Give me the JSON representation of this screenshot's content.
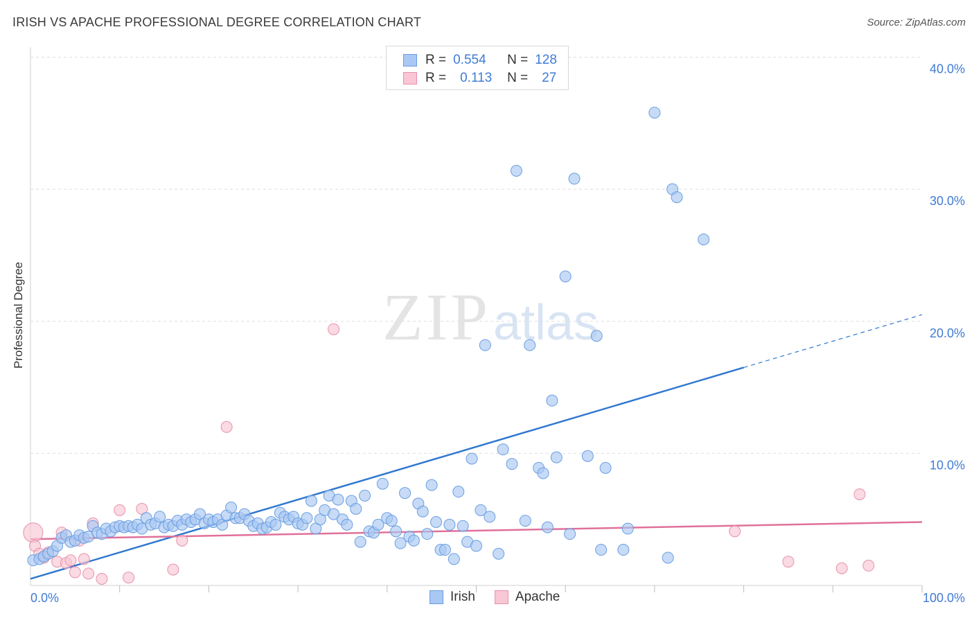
{
  "title": "IRISH VS APACHE PROFESSIONAL DEGREE CORRELATION CHART",
  "source": "Source: ZipAtlas.com",
  "watermark": {
    "zip": "ZIP",
    "atlas": "atlas"
  },
  "legend": {
    "rows": [
      {
        "r_label": "R =",
        "r_value": "0.554",
        "n_label": "N =",
        "n_value": "128",
        "color": "#a9c8f3",
        "border": "#6a9ee0"
      },
      {
        "r_label": "R =",
        "r_value": "0.113",
        "n_label": "N =",
        "n_value": "27",
        "color": "#f8c6d4",
        "border": "#e891aa"
      }
    ]
  },
  "bottom_legend": [
    {
      "label": "Irish",
      "color": "#a9c8f3",
      "border": "#6a9ee0"
    },
    {
      "label": "Apache",
      "color": "#f8c6d4",
      "border": "#e891aa"
    }
  ],
  "chart_data": {
    "type": "scatter",
    "title": "IRISH VS APACHE PROFESSIONAL DEGREE CORRELATION CHART",
    "xlabel": "",
    "ylabel": "Professional Degree",
    "xlim": [
      0,
      100
    ],
    "ylim": [
      0,
      40.5
    ],
    "x_tick_labels": [
      "0.0%",
      "100.0%"
    ],
    "y_ticks": [
      10,
      20,
      30,
      40
    ],
    "y_tick_labels": [
      "10.0%",
      "20.0%",
      "30.0%",
      "40.0%"
    ],
    "grid": true,
    "legend_position": "top-center",
    "series": [
      {
        "name": "Irish",
        "color": "#6a9ee0",
        "fill": "#a9c8f3",
        "points": [
          [
            0.3,
            1.9
          ],
          [
            1.0,
            2.0
          ],
          [
            1.5,
            2.2
          ],
          [
            2.0,
            2.4
          ],
          [
            2.5,
            2.6
          ],
          [
            3.0,
            3.0
          ],
          [
            3.5,
            3.6
          ],
          [
            4.0,
            3.8
          ],
          [
            4.5,
            3.3
          ],
          [
            5.0,
            3.4
          ],
          [
            5.5,
            3.8
          ],
          [
            6.0,
            3.6
          ],
          [
            6.5,
            3.7
          ],
          [
            7.0,
            4.5
          ],
          [
            7.5,
            4.0
          ],
          [
            8.0,
            3.9
          ],
          [
            8.5,
            4.3
          ],
          [
            9.0,
            4.1
          ],
          [
            9.5,
            4.4
          ],
          [
            10.0,
            4.5
          ],
          [
            10.5,
            4.4
          ],
          [
            11.0,
            4.5
          ],
          [
            11.5,
            4.4
          ],
          [
            12.0,
            4.6
          ],
          [
            12.5,
            4.3
          ],
          [
            13.0,
            5.1
          ],
          [
            13.5,
            4.6
          ],
          [
            14.0,
            4.7
          ],
          [
            14.5,
            5.2
          ],
          [
            15.0,
            4.4
          ],
          [
            15.5,
            4.6
          ],
          [
            16.0,
            4.5
          ],
          [
            16.5,
            4.9
          ],
          [
            17.0,
            4.6
          ],
          [
            17.5,
            5.0
          ],
          [
            18.0,
            4.8
          ],
          [
            18.5,
            5.0
          ],
          [
            19.0,
            5.4
          ],
          [
            19.5,
            4.7
          ],
          [
            20.0,
            5.0
          ],
          [
            20.5,
            4.8
          ],
          [
            21.0,
            5.0
          ],
          [
            21.5,
            4.6
          ],
          [
            22.0,
            5.3
          ],
          [
            22.5,
            5.9
          ],
          [
            23.0,
            5.1
          ],
          [
            23.5,
            5.1
          ],
          [
            24.0,
            5.4
          ],
          [
            24.5,
            4.9
          ],
          [
            25.0,
            4.5
          ],
          [
            25.5,
            4.7
          ],
          [
            26.0,
            4.3
          ],
          [
            26.5,
            4.4
          ],
          [
            27.0,
            4.8
          ],
          [
            27.5,
            4.6
          ],
          [
            28.0,
            5.5
          ],
          [
            28.5,
            5.2
          ],
          [
            29.0,
            5.0
          ],
          [
            29.5,
            5.2
          ],
          [
            30.0,
            4.7
          ],
          [
            30.5,
            4.6
          ],
          [
            31.0,
            5.1
          ],
          [
            31.5,
            6.4
          ],
          [
            32.0,
            4.3
          ],
          [
            32.5,
            5.0
          ],
          [
            33.0,
            5.7
          ],
          [
            33.5,
            6.8
          ],
          [
            34.0,
            5.4
          ],
          [
            34.5,
            6.5
          ],
          [
            35.0,
            5.0
          ],
          [
            35.5,
            4.6
          ],
          [
            36.0,
            6.4
          ],
          [
            36.5,
            5.8
          ],
          [
            37.0,
            3.3
          ],
          [
            37.5,
            6.8
          ],
          [
            38.0,
            4.1
          ],
          [
            38.5,
            4.0
          ],
          [
            39.0,
            4.6
          ],
          [
            39.5,
            7.7
          ],
          [
            40.0,
            5.1
          ],
          [
            40.5,
            4.9
          ],
          [
            41.0,
            4.1
          ],
          [
            41.5,
            3.2
          ],
          [
            42.0,
            7.0
          ],
          [
            42.5,
            3.7
          ],
          [
            43.0,
            3.4
          ],
          [
            43.5,
            6.2
          ],
          [
            44.0,
            5.6
          ],
          [
            44.5,
            3.9
          ],
          [
            45.0,
            7.6
          ],
          [
            45.5,
            4.8
          ],
          [
            46.0,
            2.7
          ],
          [
            46.5,
            2.7
          ],
          [
            47.0,
            4.6
          ],
          [
            47.5,
            2.0
          ],
          [
            48.0,
            7.1
          ],
          [
            48.5,
            4.5
          ],
          [
            49.0,
            3.3
          ],
          [
            49.5,
            9.6
          ],
          [
            50.0,
            3.0
          ],
          [
            50.5,
            5.7
          ],
          [
            51.0,
            18.2
          ],
          [
            51.5,
            5.2
          ],
          [
            52.5,
            2.4
          ],
          [
            53.0,
            10.3
          ],
          [
            54.0,
            9.2
          ],
          [
            54.5,
            31.4
          ],
          [
            55.5,
            4.9
          ],
          [
            56.0,
            18.2
          ],
          [
            57.0,
            8.9
          ],
          [
            57.5,
            8.5
          ],
          [
            58.0,
            4.4
          ],
          [
            58.5,
            14.0
          ],
          [
            59.0,
            9.7
          ],
          [
            60.0,
            23.4
          ],
          [
            60.5,
            3.9
          ],
          [
            61.0,
            30.8
          ],
          [
            64.0,
            2.7
          ],
          [
            62.5,
            9.8
          ],
          [
            63.5,
            18.9
          ],
          [
            64.5,
            8.9
          ],
          [
            66.5,
            2.7
          ],
          [
            67.0,
            4.3
          ],
          [
            70.0,
            35.8
          ],
          [
            71.5,
            2.1
          ],
          [
            72.0,
            30.0
          ],
          [
            72.5,
            29.4
          ],
          [
            75.5,
            26.2
          ]
        ]
      },
      {
        "name": "Apache",
        "color": "#e891aa",
        "fill": "#f8c6d4",
        "points": [
          [
            0.3,
            4.0
          ],
          [
            0.5,
            3.0
          ],
          [
            1.0,
            2.4
          ],
          [
            1.5,
            2.1
          ],
          [
            2.0,
            2.5
          ],
          [
            3.0,
            1.8
          ],
          [
            3.5,
            4.0
          ],
          [
            4.0,
            1.7
          ],
          [
            4.5,
            1.9
          ],
          [
            5.0,
            1.0
          ],
          [
            5.5,
            3.4
          ],
          [
            6.0,
            2.0
          ],
          [
            6.5,
            0.9
          ],
          [
            7.0,
            4.7
          ],
          [
            8.0,
            0.5
          ],
          [
            10.0,
            5.7
          ],
          [
            11.0,
            0.6
          ],
          [
            12.5,
            5.8
          ],
          [
            16.0,
            1.2
          ],
          [
            17.0,
            3.4
          ],
          [
            22.0,
            12.0
          ],
          [
            34.0,
            19.4
          ],
          [
            79.0,
            4.1
          ],
          [
            85.0,
            1.8
          ],
          [
            91.0,
            1.3
          ],
          [
            93.0,
            6.9
          ],
          [
            94.0,
            1.5
          ]
        ]
      }
    ],
    "trend_lines": [
      {
        "series": "Irish",
        "from": [
          0,
          0.5
        ],
        "to": [
          80,
          16.5
        ],
        "extended_to": [
          100,
          20.5
        ]
      },
      {
        "series": "Apache",
        "from": [
          0,
          3.5
        ],
        "to": [
          100,
          4.8
        ]
      }
    ]
  }
}
